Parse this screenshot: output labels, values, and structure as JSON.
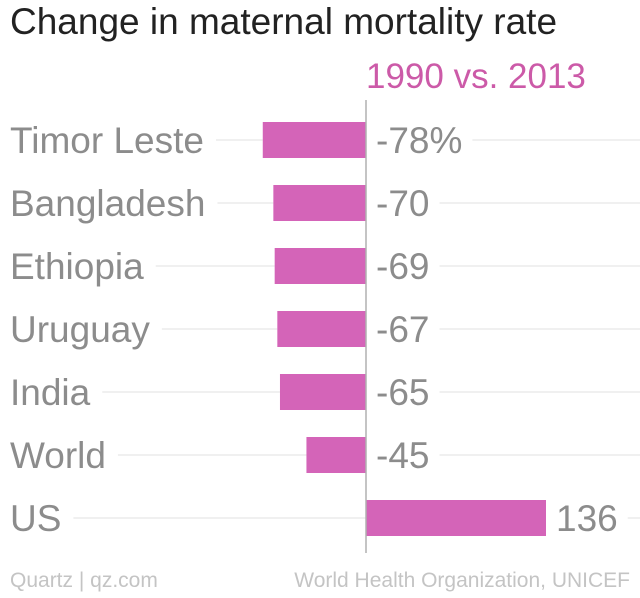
{
  "colors": {
    "bar": "#d464b8",
    "accent": "#cc5aa8",
    "gridline": "#ebebeb",
    "axis": "#b0b0b0"
  },
  "chart_data": {
    "type": "bar",
    "orientation": "horizontal",
    "title": "Change in maternal mortality rate",
    "subtitle": "1990 vs. 2013",
    "categories": [
      "Timor Leste",
      "Bangladesh",
      "Ethiopia",
      "Uruguay",
      "India",
      "World",
      "US"
    ],
    "values": [
      -78,
      -70,
      -69,
      -67,
      -65,
      -45,
      136
    ],
    "value_labels": [
      "-78%",
      "-70",
      "-69",
      "-67",
      "-65",
      "-45",
      "136"
    ],
    "unit": "%",
    "xlim": [
      -78,
      136
    ],
    "grid": true,
    "legend": "none"
  },
  "footer": {
    "source_left": "Quartz | qz.com",
    "source_right": "World Health Organization, UNICEF"
  }
}
